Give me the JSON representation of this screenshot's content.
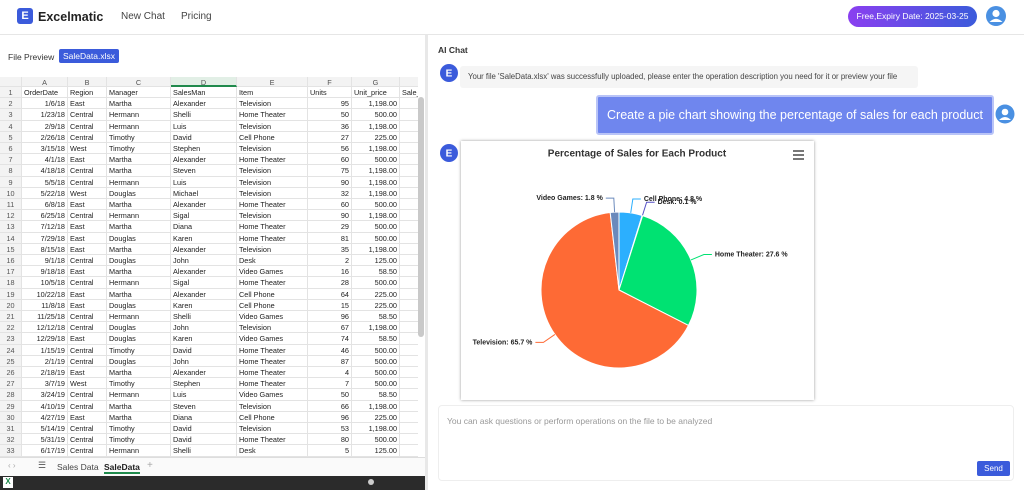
{
  "header": {
    "brand": "Excelmatic",
    "nav": [
      "New Chat",
      "Pricing"
    ],
    "badge": "Free,Expiry Date: 2025-03-25"
  },
  "file_preview": {
    "label": "File Preview",
    "file": "SaleData.xlsx"
  },
  "sheet": {
    "columns": [
      "A",
      "B",
      "C",
      "D",
      "E",
      "F",
      "G"
    ],
    "row_numbers": [
      1,
      2,
      3,
      4,
      5,
      6,
      7,
      8,
      9,
      10,
      11,
      12,
      13,
      14,
      15,
      16,
      17,
      18,
      19,
      20,
      21,
      22,
      23,
      24,
      25,
      26,
      27,
      28,
      29,
      30,
      31,
      32,
      33
    ],
    "rows": [
      [
        "OrderDate",
        "Region",
        "Manager",
        "SalesMan",
        "Item",
        "Units",
        "Unit_price",
        "Sale_"
      ],
      [
        "1/6/18",
        "East",
        "Martha",
        "Alexander",
        "Television",
        95,
        "1,198.00"
      ],
      [
        "1/23/18",
        "Central",
        "Hermann",
        "Shelli",
        "Home Theater",
        50,
        "500.00"
      ],
      [
        "2/9/18",
        "Central",
        "Hermann",
        "Luis",
        "Television",
        36,
        "1,198.00"
      ],
      [
        "2/26/18",
        "Central",
        "Timothy",
        "David",
        "Cell Phone",
        27,
        "225.00"
      ],
      [
        "3/15/18",
        "West",
        "Timothy",
        "Stephen",
        "Television",
        56,
        "1,198.00"
      ],
      [
        "4/1/18",
        "East",
        "Martha",
        "Alexander",
        "Home Theater",
        60,
        "500.00"
      ],
      [
        "4/18/18",
        "Central",
        "Martha",
        "Steven",
        "Television",
        75,
        "1,198.00"
      ],
      [
        "5/5/18",
        "Central",
        "Hermann",
        "Luis",
        "Television",
        90,
        "1,198.00"
      ],
      [
        "5/22/18",
        "West",
        "Douglas",
        "Michael",
        "Television",
        32,
        "1,198.00"
      ],
      [
        "6/8/18",
        "East",
        "Martha",
        "Alexander",
        "Home Theater",
        60,
        "500.00"
      ],
      [
        "6/25/18",
        "Central",
        "Hermann",
        "Sigal",
        "Television",
        90,
        "1,198.00"
      ],
      [
        "7/12/18",
        "East",
        "Martha",
        "Diana",
        "Home Theater",
        29,
        "500.00"
      ],
      [
        "7/29/18",
        "East",
        "Douglas",
        "Karen",
        "Home Theater",
        81,
        "500.00"
      ],
      [
        "8/15/18",
        "East",
        "Martha",
        "Alexander",
        "Television",
        35,
        "1,198.00"
      ],
      [
        "9/1/18",
        "Central",
        "Douglas",
        "John",
        "Desk",
        2,
        "125.00"
      ],
      [
        "9/18/18",
        "East",
        "Martha",
        "Alexander",
        "Video Games",
        16,
        "58.50"
      ],
      [
        "10/5/18",
        "Central",
        "Hermann",
        "Sigal",
        "Home Theater",
        28,
        "500.00"
      ],
      [
        "10/22/18",
        "East",
        "Martha",
        "Alexander",
        "Cell Phone",
        64,
        "225.00"
      ],
      [
        "11/8/18",
        "East",
        "Douglas",
        "Karen",
        "Cell Phone",
        15,
        "225.00"
      ],
      [
        "11/25/18",
        "Central",
        "Hermann",
        "Shelli",
        "Video Games",
        96,
        "58.50"
      ],
      [
        "12/12/18",
        "Central",
        "Douglas",
        "John",
        "Television",
        67,
        "1,198.00"
      ],
      [
        "12/29/18",
        "East",
        "Douglas",
        "Karen",
        "Video Games",
        74,
        "58.50"
      ],
      [
        "1/15/19",
        "Central",
        "Timothy",
        "David",
        "Home Theater",
        46,
        "500.00"
      ],
      [
        "2/1/19",
        "Central",
        "Douglas",
        "John",
        "Home Theater",
        87,
        "500.00"
      ],
      [
        "2/18/19",
        "East",
        "Martha",
        "Alexander",
        "Home Theater",
        4,
        "500.00"
      ],
      [
        "3/7/19",
        "West",
        "Timothy",
        "Stephen",
        "Home Theater",
        7,
        "500.00"
      ],
      [
        "3/24/19",
        "Central",
        "Hermann",
        "Luis",
        "Video Games",
        50,
        "58.50"
      ],
      [
        "4/10/19",
        "Central",
        "Martha",
        "Steven",
        "Television",
        66,
        "1,198.00"
      ],
      [
        "4/27/19",
        "East",
        "Martha",
        "Diana",
        "Cell Phone",
        96,
        "225.00"
      ],
      [
        "5/14/19",
        "Central",
        "Timothy",
        "David",
        "Television",
        53,
        "1,198.00"
      ],
      [
        "5/31/19",
        "Central",
        "Timothy",
        "David",
        "Home Theater",
        80,
        "500.00"
      ],
      [
        "6/17/19",
        "Central",
        "Hermann",
        "Shelli",
        "Desk",
        5,
        "125.00"
      ]
    ],
    "tabs": [
      "Sales Data",
      "SaleData"
    ]
  },
  "chat": {
    "title": "AI Chat",
    "messages": [
      "Your file 'SaleData.xlsx' was successfully uploaded, please enter the operation description you need for it or preview your file",
      "Create a pie chart showing the percentage of sales for each product"
    ],
    "input_placeholder": "You can ask questions or perform operations on the file to be analyzed",
    "send": "Send"
  },
  "chart_data": {
    "type": "pie",
    "title": "Percentage of Sales for Each Product",
    "categories": [
      "Cell Phone",
      "Desk",
      "Home Theater",
      "Television",
      "Video Games"
    ],
    "values": [
      4.8,
      0.1,
      27.6,
      65.7,
      1.8
    ],
    "value_labels": [
      "Cell Phone: 4.8 %",
      "Desk: 0.1 %",
      "Home Theater: 27.6 %",
      "Television: 65.7 %",
      "Video Games: 1.8 %"
    ],
    "colors": [
      "#2caffe",
      "#544fc5",
      "#00e272",
      "#fe6a35",
      "#6b8abc"
    ]
  }
}
